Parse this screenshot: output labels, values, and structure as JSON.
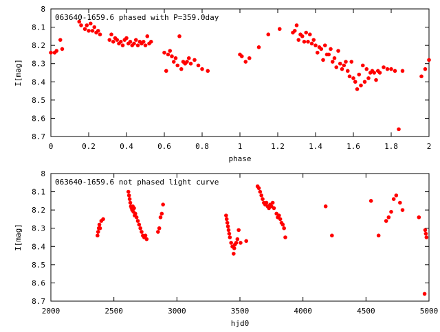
{
  "chart_data": [
    {
      "type": "scatter",
      "title": "063640-1659.6 phased with P=359.0day",
      "xlabel": "phase",
      "ylabel": "I[mag]",
      "xlim": [
        0,
        2
      ],
      "ylim": [
        8.7,
        8.0
      ],
      "y_inverted": true,
      "xticks": [
        "0",
        "0.2",
        "0.4",
        "0.6",
        "0.8",
        "1",
        "1.2",
        "1.4",
        "1.6",
        "1.8",
        "2"
      ],
      "yticks": [
        "8",
        "8.1",
        "8.2",
        "8.3",
        "8.4",
        "8.5",
        "8.6",
        "8.7"
      ],
      "color": "#ff0000",
      "series": [
        {
          "x": [
            0.0,
            0.02,
            0.03,
            0.05,
            0.06,
            0.15,
            0.16,
            0.18,
            0.19,
            0.2,
            0.21,
            0.22,
            0.23,
            0.24,
            0.25,
            0.26,
            0.31,
            0.32,
            0.33,
            0.34,
            0.35,
            0.36,
            0.37,
            0.38,
            0.39,
            0.4,
            0.41,
            0.42,
            0.43,
            0.44,
            0.45,
            0.46,
            0.47,
            0.48,
            0.49,
            0.5,
            0.51,
            0.52,
            0.53,
            0.6,
            0.61,
            0.62,
            0.63,
            0.64,
            0.65,
            0.66,
            0.67,
            0.68,
            0.69,
            0.7,
            0.71,
            0.72,
            0.73,
            0.74,
            0.76,
            0.78,
            0.8,
            0.83,
            1.0,
            1.01,
            1.03,
            1.05,
            1.1,
            1.15,
            1.21,
            1.28,
            1.29,
            1.3,
            1.31,
            1.32,
            1.33,
            1.34,
            1.35,
            1.36,
            1.37,
            1.38,
            1.39,
            1.4,
            1.41,
            1.42,
            1.43,
            1.44,
            1.45,
            1.46,
            1.47,
            1.48,
            1.49,
            1.5,
            1.51,
            1.52,
            1.53,
            1.54,
            1.55,
            1.56,
            1.57,
            1.58,
            1.59,
            1.6,
            1.61,
            1.62,
            1.63,
            1.64,
            1.65,
            1.66,
            1.67,
            1.68,
            1.69,
            1.7,
            1.71,
            1.72,
            1.73,
            1.74,
            1.76,
            1.78,
            1.8,
            1.82,
            1.84,
            1.86,
            1.96,
            1.98,
            2.0
          ],
          "y": [
            8.24,
            8.24,
            8.23,
            8.17,
            8.22,
            8.07,
            8.09,
            8.11,
            8.09,
            8.12,
            8.08,
            8.12,
            8.1,
            8.13,
            8.12,
            8.14,
            8.17,
            8.14,
            8.18,
            8.16,
            8.17,
            8.19,
            8.18,
            8.2,
            8.17,
            8.16,
            8.19,
            8.18,
            8.2,
            8.19,
            8.17,
            8.2,
            8.18,
            8.19,
            8.18,
            8.2,
            8.15,
            8.19,
            8.18,
            8.24,
            8.34,
            8.25,
            8.23,
            8.26,
            8.29,
            8.27,
            8.31,
            8.15,
            8.33,
            8.29,
            8.3,
            8.29,
            8.27,
            8.3,
            8.28,
            8.31,
            8.33,
            8.34,
            8.25,
            8.26,
            8.29,
            8.27,
            8.21,
            8.14,
            8.11,
            8.13,
            8.12,
            8.09,
            8.17,
            8.14,
            8.15,
            8.18,
            8.13,
            8.18,
            8.14,
            8.19,
            8.17,
            8.2,
            8.24,
            8.21,
            8.22,
            8.28,
            8.2,
            8.25,
            8.25,
            8.22,
            8.29,
            8.27,
            8.32,
            8.23,
            8.3,
            8.33,
            8.31,
            8.29,
            8.34,
            8.37,
            8.29,
            8.38,
            8.4,
            8.44,
            8.36,
            8.42,
            8.31,
            8.4,
            8.33,
            8.38,
            8.35,
            8.34,
            8.35,
            8.39,
            8.34,
            8.35,
            8.32,
            8.33,
            8.33,
            8.34,
            8.66,
            8.34,
            8.37,
            8.33,
            8.28
          ]
        }
      ]
    },
    {
      "type": "scatter",
      "title": "063640-1659.6 not phased light curve",
      "xlabel": "hjd0",
      "ylabel": "I[mag]",
      "xlim": [
        2000,
        5000
      ],
      "ylim": [
        8.7,
        8.0
      ],
      "y_inverted": true,
      "xticks": [
        "2000",
        "2500",
        "3000",
        "3500",
        "4000",
        "4500",
        "5000"
      ],
      "yticks": [
        "8",
        "8.1",
        "8.2",
        "8.3",
        "8.4",
        "8.5",
        "8.6",
        "8.7"
      ],
      "color": "#ff0000",
      "series": [
        {
          "x": [
            2370,
            2375,
            2380,
            2385,
            2390,
            2400,
            2415,
            2615,
            2620,
            2625,
            2630,
            2635,
            2640,
            2645,
            2650,
            2655,
            2660,
            2665,
            2670,
            2680,
            2690,
            2700,
            2710,
            2720,
            2730,
            2740,
            2750,
            2760,
            2850,
            2860,
            2870,
            2880,
            2890,
            3390,
            3395,
            3400,
            3405,
            3410,
            3415,
            3420,
            3430,
            3440,
            3450,
            3455,
            3460,
            3470,
            3480,
            3490,
            3505,
            3550,
            3640,
            3650,
            3660,
            3670,
            3680,
            3690,
            3700,
            3710,
            3720,
            3730,
            3740,
            3750,
            3760,
            3770,
            3790,
            3800,
            3810,
            3820,
            3830,
            3840,
            3850,
            3860,
            4180,
            4230,
            4540,
            4600,
            4660,
            4680,
            4700,
            4720,
            4740,
            4770,
            4790,
            4920,
            4965,
            4970,
            4975,
            4980
          ],
          "y": [
            8.34,
            8.32,
            8.3,
            8.28,
            8.3,
            8.26,
            8.25,
            8.1,
            8.12,
            8.14,
            8.16,
            8.18,
            8.19,
            8.2,
            8.18,
            8.21,
            8.19,
            8.23,
            8.22,
            8.24,
            8.26,
            8.28,
            8.3,
            8.32,
            8.34,
            8.35,
            8.34,
            8.36,
            8.32,
            8.3,
            8.24,
            8.22,
            8.17,
            8.23,
            8.25,
            8.27,
            8.29,
            8.31,
            8.33,
            8.35,
            8.38,
            8.4,
            8.44,
            8.41,
            8.39,
            8.38,
            8.36,
            8.31,
            8.38,
            8.37,
            8.07,
            8.08,
            8.1,
            8.12,
            8.14,
            8.16,
            8.17,
            8.16,
            8.18,
            8.19,
            8.17,
            8.18,
            8.16,
            8.19,
            8.22,
            8.24,
            8.23,
            8.25,
            8.27,
            8.28,
            8.3,
            8.35,
            8.18,
            8.34,
            8.15,
            8.34,
            8.26,
            8.24,
            8.21,
            8.14,
            8.12,
            8.16,
            8.2,
            8.24,
            8.66,
            8.31,
            8.33,
            8.35
          ]
        }
      ]
    }
  ]
}
